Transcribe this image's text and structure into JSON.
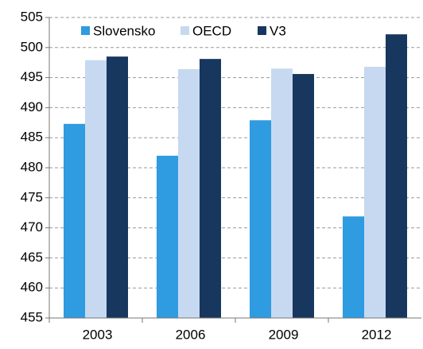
{
  "chart_data": {
    "type": "bar",
    "categories": [
      "2003",
      "2006",
      "2009",
      "2012"
    ],
    "series": [
      {
        "name": "Slovensko",
        "color": "#2f9be0",
        "values": [
          487.3,
          482,
          487.9,
          471.9
        ]
      },
      {
        "name": "OECD",
        "color": "#c6d9f1",
        "values": [
          497.9,
          496.4,
          496.5,
          496.8
        ]
      },
      {
        "name": "V3",
        "color": "#17375e",
        "values": [
          498.5,
          498.1,
          495.6,
          502.2
        ]
      }
    ],
    "ylim": [
      455,
      505
    ],
    "yticks": [
      455,
      460,
      465,
      470,
      475,
      480,
      485,
      490,
      495,
      500,
      505
    ],
    "grid": true,
    "legend": "top"
  }
}
